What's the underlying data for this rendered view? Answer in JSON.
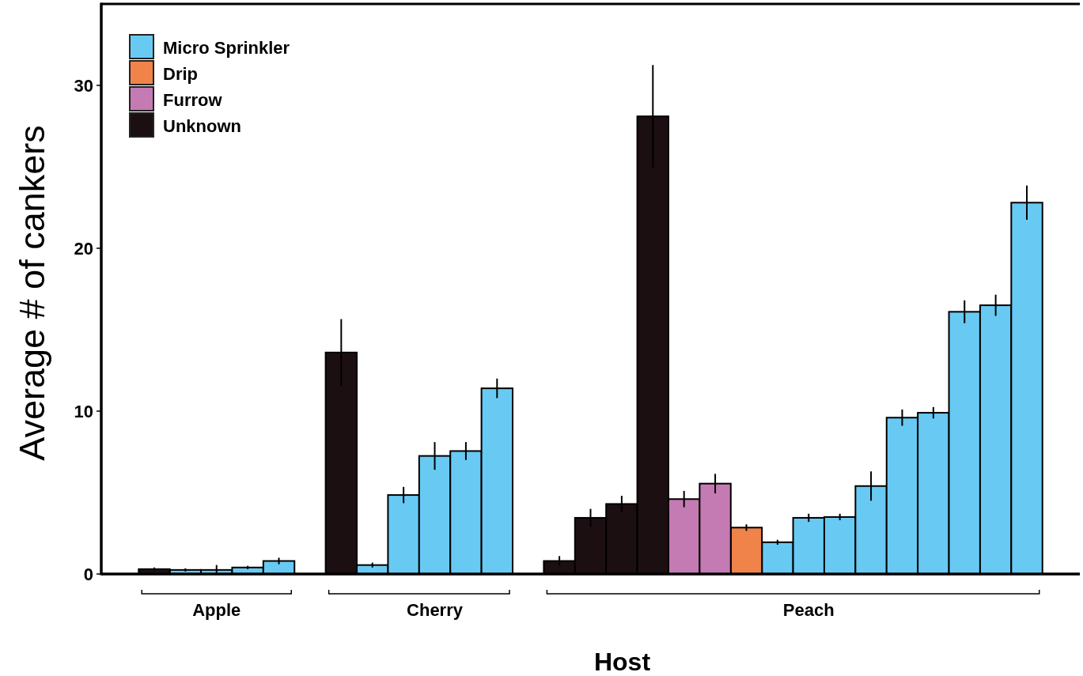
{
  "chart_data": {
    "type": "bar",
    "xlabel": "Host",
    "ylabel": "Average # of cankers",
    "ylim": [
      0,
      35
    ],
    "yticks": [
      0,
      10,
      20,
      30
    ],
    "legend": "top left",
    "categories": [
      null,
      null,
      "Apple",
      null,
      null,
      null,
      null,
      null,
      null,
      "Cherry",
      null,
      null,
      null,
      null,
      null,
      null,
      null,
      null,
      null,
      null,
      null,
      "Peach",
      null,
      null,
      null,
      null,
      null,
      null,
      null
    ],
    "series": [
      {
        "name": "Micro Sprinkler",
        "color": "#68caf3",
        "values": [
          null,
          0.25,
          0.25,
          0.4,
          0.8,
          null,
          null,
          0.55,
          4.85,
          7.25,
          7.55,
          11.4,
          null,
          null,
          null,
          null,
          null,
          null,
          null,
          null,
          1.95,
          3.45,
          3.5,
          5.4,
          9.6,
          9.9,
          16.1,
          16.5,
          22.8
        ],
        "errors": [
          null,
          0.1,
          0.3,
          0.1,
          0.2,
          null,
          null,
          0.15,
          0.5,
          0.85,
          0.55,
          0.6,
          null,
          null,
          null,
          null,
          null,
          null,
          null,
          null,
          0.15,
          0.25,
          0.2,
          0.9,
          0.5,
          0.35,
          0.7,
          0.65,
          1.05
        ]
      },
      {
        "name": "Drip",
        "color": "#f0834a",
        "values": [
          null,
          null,
          null,
          null,
          null,
          null,
          null,
          null,
          null,
          null,
          null,
          null,
          null,
          null,
          null,
          null,
          null,
          null,
          null,
          2.85,
          null,
          null,
          null,
          null,
          null,
          null,
          null,
          null,
          null
        ],
        "errors": [
          null,
          null,
          null,
          null,
          null,
          null,
          null,
          null,
          null,
          null,
          null,
          null,
          null,
          null,
          null,
          null,
          null,
          null,
          null,
          0.2,
          null,
          null,
          null,
          null,
          null,
          null,
          null,
          null,
          null
        ]
      },
      {
        "name": "Furrow",
        "color": "#c47ab2",
        "values": [
          null,
          null,
          null,
          null,
          null,
          null,
          null,
          null,
          null,
          null,
          null,
          null,
          null,
          null,
          null,
          null,
          null,
          4.6,
          5.55,
          null,
          null,
          null,
          null,
          null,
          null,
          null,
          null,
          null,
          null
        ],
        "errors": [
          null,
          null,
          null,
          null,
          null,
          null,
          null,
          null,
          null,
          null,
          null,
          null,
          null,
          null,
          null,
          null,
          null,
          0.5,
          0.6,
          null,
          null,
          null,
          null,
          null,
          null,
          null,
          null,
          null,
          null
        ]
      },
      {
        "name": "Unknown",
        "color": "#1c0f12",
        "values": [
          0.3,
          null,
          null,
          null,
          null,
          null,
          13.6,
          null,
          null,
          null,
          null,
          null,
          null,
          0.8,
          3.45,
          4.3,
          28.1,
          null,
          null,
          null,
          null,
          null,
          null,
          null,
          null,
          null,
          null,
          null,
          null
        ],
        "errors": [
          0.1,
          null,
          null,
          null,
          null,
          null,
          2.05,
          null,
          null,
          null,
          null,
          null,
          null,
          0.3,
          0.55,
          0.5,
          3.15,
          null,
          null,
          null,
          null,
          null,
          null,
          null,
          null,
          null,
          null,
          null,
          null
        ]
      }
    ]
  }
}
